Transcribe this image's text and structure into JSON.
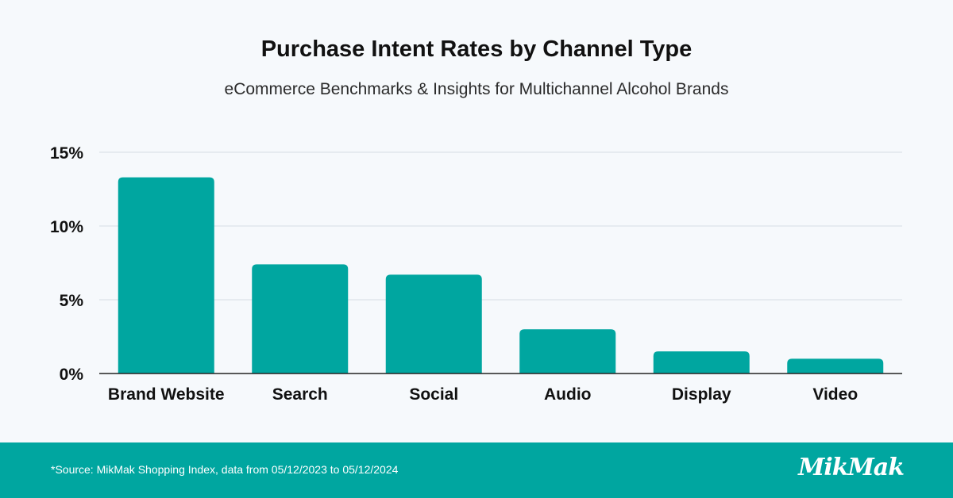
{
  "chart_data": {
    "type": "bar",
    "title": "Purchase Intent Rates by Channel Type",
    "subtitle": "eCommerce Benchmarks & Insights for Multichannel Alcohol Brands",
    "categories": [
      "Brand Website",
      "Search",
      "Social",
      "Audio",
      "Display",
      "Video"
    ],
    "values": [
      13.3,
      7.4,
      6.7,
      3.0,
      1.5,
      1.0
    ],
    "unit": "%",
    "ylim": [
      0,
      15
    ],
    "yticks": [
      0,
      5,
      10,
      15
    ],
    "ytick_labels": [
      "0%",
      "5%",
      "10%",
      "15%"
    ],
    "xlabel": "",
    "ylabel": "",
    "grid": true,
    "legend": "none",
    "bar_color": "#00a6a0"
  },
  "footer": {
    "source": "*Source: MikMak Shopping Index, data from 05/12/2023 to 05/12/2024",
    "logo_text": "MikMak",
    "background": "#00a6a0"
  }
}
